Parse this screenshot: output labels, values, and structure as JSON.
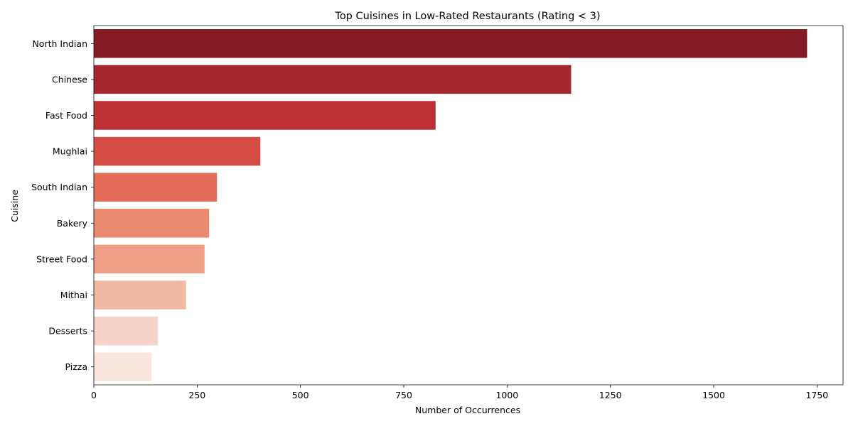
{
  "chart_data": {
    "type": "bar",
    "orientation": "horizontal",
    "title": "Top Cuisines in Low-Rated Restaurants (Rating < 3)",
    "xlabel": "Number of Occurrences",
    "ylabel": "Cuisine",
    "categories": [
      "North Indian",
      "Chinese",
      "Fast Food",
      "Mughlai",
      "South Indian",
      "Bakery",
      "Street Food",
      "Mithai",
      "Desserts",
      "Pizza"
    ],
    "values": [
      1726,
      1155,
      827,
      403,
      298,
      279,
      268,
      223,
      155,
      140
    ],
    "colors": [
      "#851b24",
      "#a3272e",
      "#bd3036",
      "#d44c43",
      "#e36d58",
      "#ea8b71",
      "#ee9f86",
      "#f2b9a5",
      "#f5d3c6",
      "#f9e6de"
    ],
    "xlim": [
      0,
      1813
    ],
    "xticks": [
      "0",
      "250",
      "500",
      "750",
      "1000",
      "1250",
      "1500",
      "1750"
    ],
    "grid": false,
    "legend": "none"
  }
}
